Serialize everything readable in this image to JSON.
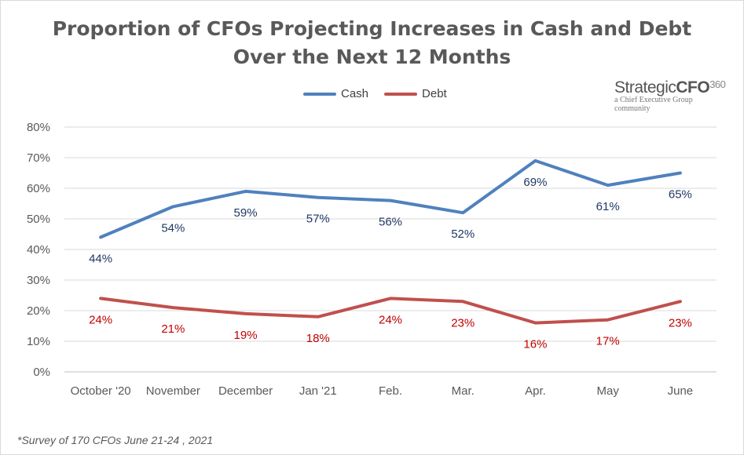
{
  "title_line1": "Proportion of CFOs Projecting Increases in Cash and Debt",
  "title_line2": "Over the Next 12 Months",
  "logo": {
    "brand_part1": "Strategic",
    "brand_part2": "CFO",
    "brand_part3": "360",
    "tagline": "a Chief Executive Group community"
  },
  "footnote": "*Survey of  170 CFOs June 21-24 , 2021",
  "chart_data": {
    "type": "line",
    "categories": [
      "October '20",
      "November",
      "December",
      "Jan '21",
      "Feb.",
      "Mar.",
      "Apr.",
      "May",
      "June"
    ],
    "series": [
      {
        "name": "Cash",
        "color": "#4f81bd",
        "label_color": "#1f3864",
        "values": [
          44,
          54,
          59,
          57,
          56,
          52,
          69,
          61,
          65
        ],
        "labels": [
          "44%",
          "54%",
          "59%",
          "57%",
          "56%",
          "52%",
          "69%",
          "61%",
          "65%"
        ]
      },
      {
        "name": "Debt",
        "color": "#c0504d",
        "label_color": "#c00000",
        "values": [
          24,
          21,
          19,
          18,
          24,
          23,
          16,
          17,
          23
        ],
        "labels": [
          "24%",
          "21%",
          "19%",
          "18%",
          "24%",
          "23%",
          "16%",
          "17%",
          "23%"
        ]
      }
    ],
    "ylim": [
      0,
      80
    ],
    "yticks": [
      "0%",
      "10%",
      "20%",
      "30%",
      "40%",
      "50%",
      "60%",
      "70%",
      "80%"
    ],
    "grid": true,
    "legend_position": "top"
  }
}
